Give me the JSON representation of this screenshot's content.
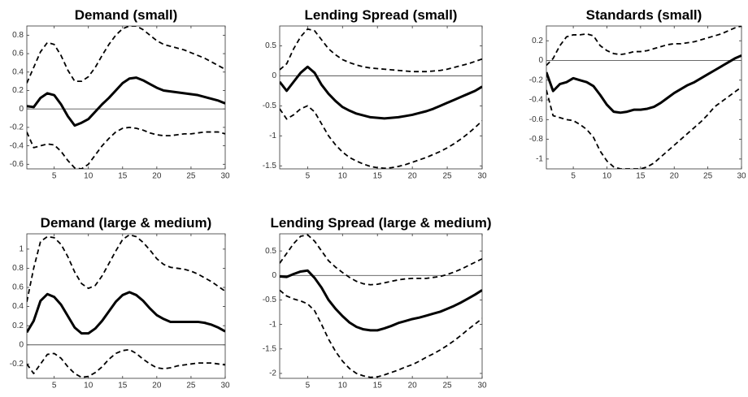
{
  "chart_data": [
    {
      "type": "line",
      "title": "Demand (small)",
      "x": [
        1,
        2,
        3,
        4,
        5,
        6,
        7,
        8,
        9,
        10,
        11,
        12,
        13,
        14,
        15,
        16,
        17,
        18,
        19,
        20,
        21,
        22,
        23,
        24,
        25,
        26,
        27,
        28,
        29,
        30
      ],
      "xlim": [
        1,
        30
      ],
      "xticks": [
        5,
        10,
        15,
        20,
        25,
        30
      ],
      "ylim": [
        -0.65,
        0.9
      ],
      "yticks": [
        -0.6,
        -0.4,
        -0.2,
        0,
        0.2,
        0.4,
        0.6,
        0.8
      ],
      "reference_line": 0,
      "series": [
        {
          "color": "#000000",
          "line_style": "solid",
          "values": [
            0.03,
            0.02,
            0.12,
            0.17,
            0.15,
            0.05,
            -0.08,
            -0.18,
            -0.15,
            -0.11,
            -0.03,
            0.05,
            0.12,
            0.2,
            0.28,
            0.33,
            0.34,
            0.31,
            0.27,
            0.23,
            0.2,
            0.19,
            0.18,
            0.17,
            0.16,
            0.15,
            0.13,
            0.11,
            0.09,
            0.06
          ]
        },
        {
          "color": "#000000",
          "line_style": "dashed",
          "values": [
            0.28,
            0.45,
            0.62,
            0.72,
            0.7,
            0.58,
            0.42,
            0.3,
            0.3,
            0.35,
            0.45,
            0.58,
            0.7,
            0.8,
            0.87,
            0.9,
            0.9,
            0.86,
            0.8,
            0.74,
            0.7,
            0.68,
            0.66,
            0.64,
            0.61,
            0.58,
            0.55,
            0.51,
            0.47,
            0.43
          ]
        },
        {
          "color": "#000000",
          "line_style": "dashed",
          "values": [
            -0.25,
            -0.42,
            -0.4,
            -0.38,
            -0.39,
            -0.46,
            -0.56,
            -0.64,
            -0.65,
            -0.6,
            -0.5,
            -0.4,
            -0.32,
            -0.25,
            -0.21,
            -0.2,
            -0.21,
            -0.23,
            -0.26,
            -0.28,
            -0.29,
            -0.29,
            -0.28,
            -0.27,
            -0.27,
            -0.26,
            -0.25,
            -0.25,
            -0.25,
            -0.27
          ]
        }
      ]
    },
    {
      "type": "line",
      "title": "Lending Spread (small)",
      "x": [
        1,
        2,
        3,
        4,
        5,
        6,
        7,
        8,
        9,
        10,
        11,
        12,
        13,
        14,
        15,
        16,
        17,
        18,
        19,
        20,
        21,
        22,
        23,
        24,
        25,
        26,
        27,
        28,
        29,
        30
      ],
      "xlim": [
        1,
        30
      ],
      "xticks": [
        5,
        10,
        15,
        20,
        25,
        30
      ],
      "ylim": [
        -1.55,
        0.83
      ],
      "yticks": [
        -1.5,
        -1,
        -0.5,
        0,
        0.5
      ],
      "reference_line": 0,
      "series": [
        {
          "color": "#000000",
          "line_style": "solid",
          "values": [
            -0.1,
            -0.25,
            -0.1,
            0.05,
            0.15,
            0.05,
            -0.15,
            -0.3,
            -0.42,
            -0.52,
            -0.58,
            -0.63,
            -0.66,
            -0.69,
            -0.7,
            -0.71,
            -0.7,
            -0.69,
            -0.67,
            -0.65,
            -0.62,
            -0.59,
            -0.55,
            -0.5,
            -0.45,
            -0.4,
            -0.35,
            -0.3,
            -0.25,
            -0.18
          ]
        },
        {
          "color": "#000000",
          "line_style": "dashed",
          "values": [
            0.1,
            0.2,
            0.45,
            0.65,
            0.78,
            0.75,
            0.6,
            0.45,
            0.35,
            0.27,
            0.22,
            0.18,
            0.15,
            0.13,
            0.12,
            0.11,
            0.1,
            0.09,
            0.08,
            0.07,
            0.07,
            0.07,
            0.08,
            0.09,
            0.11,
            0.14,
            0.17,
            0.2,
            0.24,
            0.28
          ]
        },
        {
          "color": "#000000",
          "line_style": "dashed",
          "values": [
            -0.55,
            -0.72,
            -0.65,
            -0.55,
            -0.5,
            -0.6,
            -0.8,
            -1,
            -1.15,
            -1.27,
            -1.36,
            -1.42,
            -1.47,
            -1.51,
            -1.53,
            -1.54,
            -1.53,
            -1.51,
            -1.48,
            -1.44,
            -1.4,
            -1.36,
            -1.31,
            -1.26,
            -1.2,
            -1.13,
            -1.05,
            -0.96,
            -0.86,
            -0.75
          ]
        }
      ]
    },
    {
      "type": "line",
      "title": "Standards (small)",
      "x": [
        1,
        2,
        3,
        4,
        5,
        6,
        7,
        8,
        9,
        10,
        11,
        12,
        13,
        14,
        15,
        16,
        17,
        18,
        19,
        20,
        21,
        22,
        23,
        24,
        25,
        26,
        27,
        28,
        29,
        30
      ],
      "xlim": [
        1,
        30
      ],
      "xticks": [
        5,
        10,
        15,
        20,
        25,
        30
      ],
      "ylim": [
        -1.1,
        0.35
      ],
      "yticks": [
        -1,
        -0.8,
        -0.6,
        -0.4,
        -0.2,
        0,
        0.2
      ],
      "reference_line": 0,
      "series": [
        {
          "color": "#000000",
          "line_style": "solid",
          "values": [
            -0.12,
            -0.31,
            -0.24,
            -0.22,
            -0.18,
            -0.2,
            -0.22,
            -0.26,
            -0.35,
            -0.45,
            -0.52,
            -0.53,
            -0.52,
            -0.5,
            -0.5,
            -0.49,
            -0.47,
            -0.43,
            -0.38,
            -0.33,
            -0.29,
            -0.25,
            -0.22,
            -0.18,
            -0.14,
            -0.1,
            -0.06,
            -0.02,
            0.02,
            0.05
          ]
        },
        {
          "color": "#000000",
          "line_style": "dashed",
          "values": [
            -0.05,
            0.02,
            0.15,
            0.24,
            0.26,
            0.26,
            0.27,
            0.25,
            0.15,
            0.1,
            0.07,
            0.06,
            0.07,
            0.09,
            0.09,
            0.1,
            0.12,
            0.14,
            0.16,
            0.17,
            0.17,
            0.18,
            0.19,
            0.21,
            0.23,
            0.25,
            0.27,
            0.3,
            0.33,
            0.35
          ]
        },
        {
          "color": "#000000",
          "line_style": "dashed",
          "values": [
            -0.3,
            -0.56,
            -0.58,
            -0.6,
            -0.61,
            -0.65,
            -0.7,
            -0.78,
            -0.92,
            -1.02,
            -1.08,
            -1.1,
            -1.1,
            -1.1,
            -1.1,
            -1.08,
            -1.04,
            -0.98,
            -0.92,
            -0.86,
            -0.8,
            -0.74,
            -0.68,
            -0.62,
            -0.55,
            -0.47,
            -0.42,
            -0.37,
            -0.32,
            -0.27
          ]
        }
      ]
    },
    {
      "type": "line",
      "title": "Demand (large & medium)",
      "x": [
        1,
        2,
        3,
        4,
        5,
        6,
        7,
        8,
        9,
        10,
        11,
        12,
        13,
        14,
        15,
        16,
        17,
        18,
        19,
        20,
        21,
        22,
        23,
        24,
        25,
        26,
        27,
        28,
        29,
        30
      ],
      "xlim": [
        1,
        30
      ],
      "xticks": [
        5,
        10,
        15,
        20,
        25,
        30
      ],
      "ylim": [
        -0.35,
        1.16
      ],
      "yticks": [
        -0.2,
        0,
        0.2,
        0.4,
        0.6,
        0.8,
        1
      ],
      "reference_line": 0,
      "series": [
        {
          "color": "#000000",
          "line_style": "solid",
          "values": [
            0.13,
            0.25,
            0.46,
            0.53,
            0.5,
            0.42,
            0.3,
            0.18,
            0.12,
            0.12,
            0.17,
            0.25,
            0.35,
            0.45,
            0.52,
            0.55,
            0.52,
            0.46,
            0.38,
            0.31,
            0.27,
            0.24,
            0.24,
            0.24,
            0.24,
            0.24,
            0.23,
            0.21,
            0.18,
            0.14
          ]
        },
        {
          "color": "#000000",
          "line_style": "dashed",
          "values": [
            0.45,
            0.8,
            1.08,
            1.13,
            1.12,
            1.05,
            0.92,
            0.76,
            0.64,
            0.59,
            0.62,
            0.72,
            0.85,
            0.98,
            1.1,
            1.15,
            1.13,
            1.07,
            0.99,
            0.9,
            0.84,
            0.81,
            0.8,
            0.79,
            0.77,
            0.74,
            0.7,
            0.66,
            0.61,
            0.56
          ]
        },
        {
          "color": "#000000",
          "line_style": "dashed",
          "values": [
            -0.2,
            -0.3,
            -0.2,
            -0.1,
            -0.09,
            -0.14,
            -0.23,
            -0.3,
            -0.34,
            -0.33,
            -0.29,
            -0.23,
            -0.15,
            -0.09,
            -0.06,
            -0.05,
            -0.09,
            -0.15,
            -0.2,
            -0.24,
            -0.25,
            -0.24,
            -0.22,
            -0.21,
            -0.2,
            -0.19,
            -0.19,
            -0.19,
            -0.2,
            -0.21
          ]
        }
      ]
    },
    {
      "type": "line",
      "title": "Lending Spread (large & medium)",
      "x": [
        1,
        2,
        3,
        4,
        5,
        6,
        7,
        8,
        9,
        10,
        11,
        12,
        13,
        14,
        15,
        16,
        17,
        18,
        19,
        20,
        21,
        22,
        23,
        24,
        25,
        26,
        27,
        28,
        29,
        30
      ],
      "xlim": [
        1,
        30
      ],
      "xticks": [
        5,
        10,
        15,
        20,
        25,
        30
      ],
      "ylim": [
        -2.1,
        0.85
      ],
      "yticks": [
        -2,
        -1.5,
        -1,
        -0.5,
        0,
        0.5
      ],
      "reference_line": 0,
      "series": [
        {
          "color": "#000000",
          "line_style": "solid",
          "values": [
            -0.02,
            -0.03,
            0.03,
            0.08,
            0.1,
            -0.05,
            -0.25,
            -0.5,
            -0.68,
            -0.83,
            -0.96,
            -1.05,
            -1.1,
            -1.12,
            -1.12,
            -1.08,
            -1.03,
            -0.97,
            -0.93,
            -0.89,
            -0.86,
            -0.82,
            -0.78,
            -0.74,
            -0.68,
            -0.62,
            -0.55,
            -0.47,
            -0.39,
            -0.3
          ]
        },
        {
          "color": "#000000",
          "line_style": "dashed",
          "values": [
            0.25,
            0.45,
            0.65,
            0.8,
            0.83,
            0.7,
            0.5,
            0.3,
            0.17,
            0.06,
            -0.04,
            -0.12,
            -0.17,
            -0.19,
            -0.18,
            -0.15,
            -0.12,
            -0.09,
            -0.07,
            -0.06,
            -0.06,
            -0.06,
            -0.04,
            -0.02,
            0.02,
            0.07,
            0.13,
            0.2,
            0.27,
            0.34
          ]
        },
        {
          "color": "#000000",
          "line_style": "dashed",
          "values": [
            -0.3,
            -0.42,
            -0.48,
            -0.52,
            -0.58,
            -0.72,
            -1,
            -1.3,
            -1.55,
            -1.75,
            -1.9,
            -2,
            -2.05,
            -2.08,
            -2.07,
            -2.03,
            -1.98,
            -1.93,
            -1.87,
            -1.82,
            -1.75,
            -1.67,
            -1.6,
            -1.52,
            -1.43,
            -1.33,
            -1.22,
            -1.1,
            -0.99,
            -0.88
          ]
        }
      ]
    }
  ]
}
